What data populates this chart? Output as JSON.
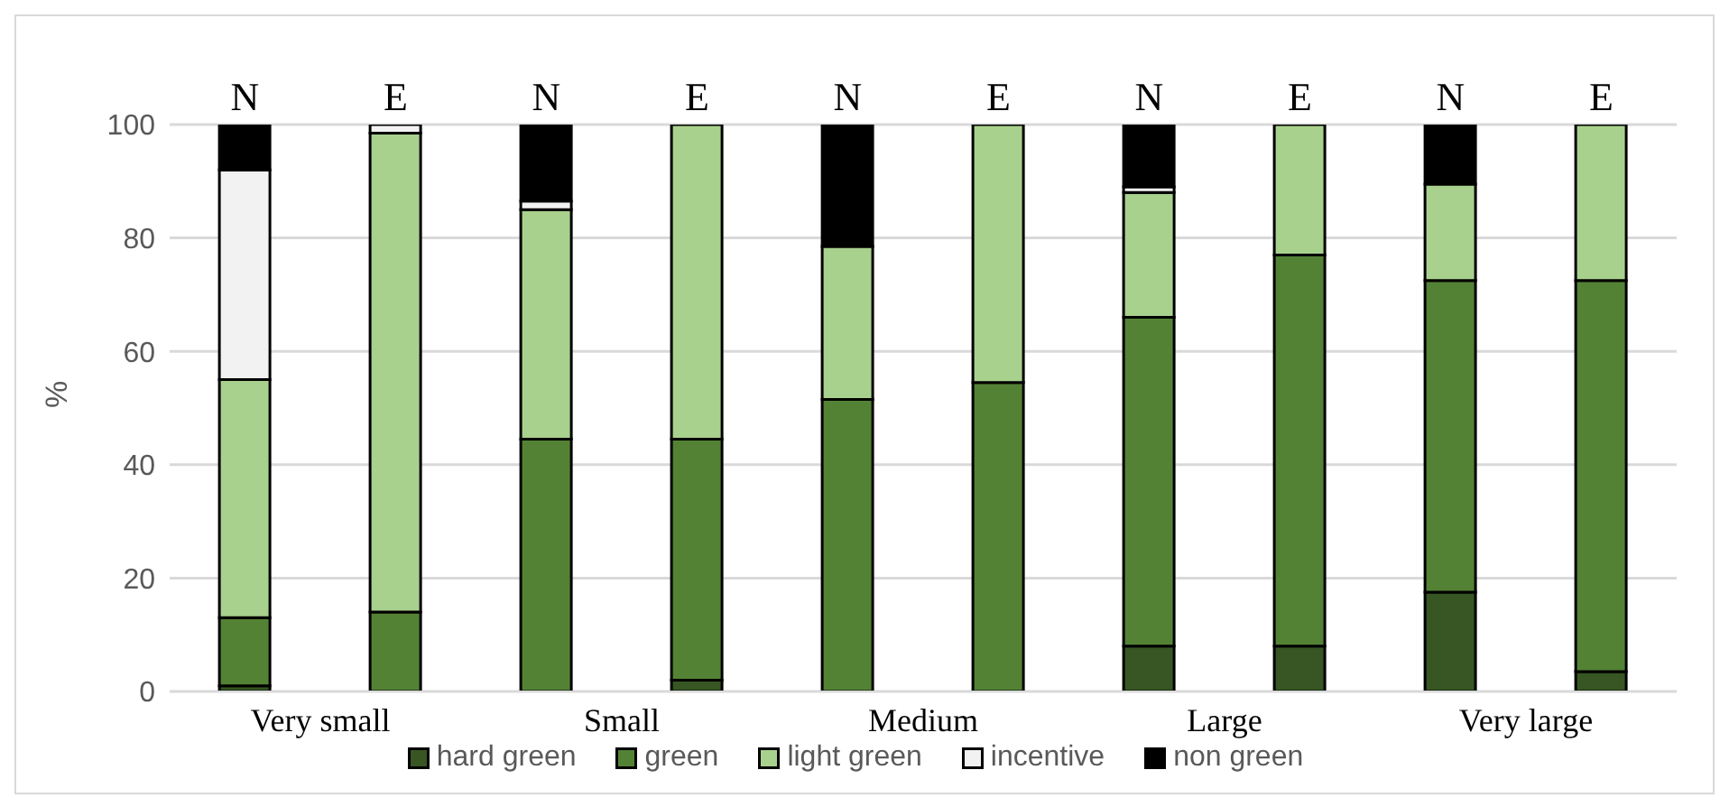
{
  "chart_data": {
    "type": "bar",
    "stacked": true,
    "ylabel": "%",
    "categories": [
      "N",
      "E",
      "N",
      "E",
      "N",
      "E",
      "N",
      "E",
      "N",
      "E"
    ],
    "annotations": [
      "Very small",
      "Small",
      "Medium",
      "Large",
      "Very large"
    ],
    "series": [
      {
        "name": "hard green",
        "color": "#375623",
        "values": [
          1,
          0,
          0,
          2,
          0,
          0,
          8,
          8,
          17.5,
          3.5
        ]
      },
      {
        "name": "green",
        "color": "#548235",
        "values": [
          12,
          14,
          44.5,
          42.5,
          51.5,
          54.5,
          58,
          69,
          55,
          69
        ]
      },
      {
        "name": "light green",
        "color": "#a9d18e",
        "values": [
          42,
          84.5,
          40.5,
          55.5,
          27,
          45.5,
          22,
          23,
          17,
          27.5
        ]
      },
      {
        "name": "incentive",
        "color": "#f2f2f2",
        "values": [
          37,
          1.5,
          1.5,
          0,
          0,
          0,
          1,
          0,
          0,
          0
        ]
      },
      {
        "name": "non green",
        "color": "#000000",
        "values": [
          8,
          0,
          13.5,
          0,
          21.5,
          0,
          11,
          0,
          10.5,
          0
        ]
      }
    ],
    "ylim": [
      0,
      100
    ],
    "yticks": [
      0,
      20,
      40,
      60,
      80,
      100
    ],
    "grid": "y",
    "legend": "bottom"
  }
}
